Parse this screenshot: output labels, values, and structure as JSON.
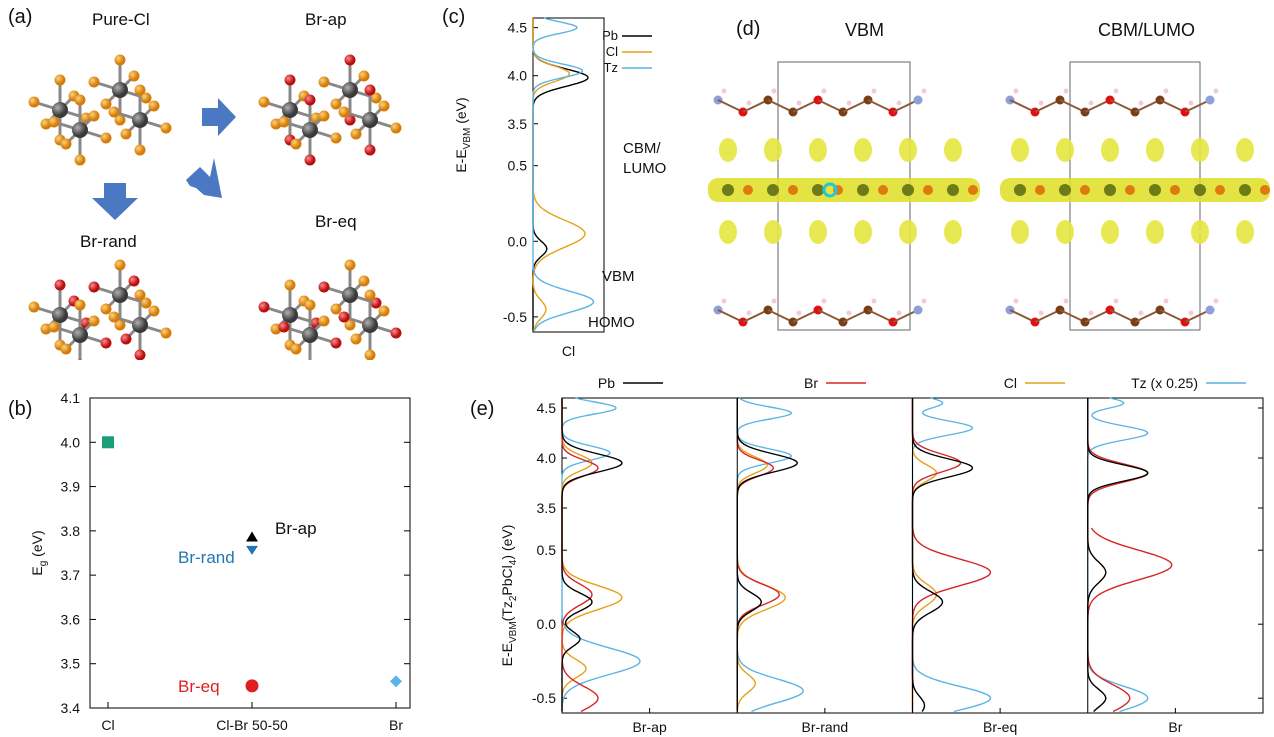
{
  "panels": {
    "a": {
      "label": "(a)",
      "structures": [
        "Pure-Cl",
        "Br-ap",
        "Br-rand",
        "Br-eq"
      ]
    },
    "b": {
      "label": "(b)",
      "ylabel": "E",
      "ylabel_sub": "g",
      "ylabel_unit": " (eV)",
      "annotations": [
        "Br-ap",
        "Br-rand",
        "Br-eq"
      ]
    },
    "c": {
      "label": "(c)",
      "ylabel_main": "E-E",
      "ylabel_sub": "VBM",
      "ylabel_unit": " (eV)",
      "xlabel": "Cl",
      "annotations": [
        "CBM/",
        "LUMO",
        "VBM",
        "HOMO"
      ],
      "legend": [
        "Pb",
        "Cl",
        "Tz"
      ]
    },
    "d": {
      "label": "(d)",
      "titles": [
        "VBM",
        "CBM/LUMO"
      ]
    },
    "e": {
      "label": "(e)",
      "ylabel_main": "E-E",
      "ylabel_sub": "VBM",
      "ylabel_paren": "(Tz",
      "ylabel_sub2": "2",
      "ylabel_mid": "PbCl",
      "ylabel_sub3": "4",
      "ylabel_end": ") (eV)",
      "legend": [
        "Pb",
        "Br",
        "Cl",
        "Tz (x 0.25)"
      ],
      "xlabels": [
        "Br-ap",
        "Br-rand",
        "Br-eq",
        "Br"
      ]
    }
  },
  "colors": {
    "Pb": "#000000",
    "Br": "#d62728",
    "Cl": "#e6a118",
    "Tz": "#5ab4e5",
    "square": "#1a9e77",
    "diamond": "#5ab4e5",
    "rand": "#1f77b4"
  },
  "chart_data": [
    {
      "type": "scatter",
      "panel": "b",
      "categories": [
        "Cl",
        "Cl-Br 50-50",
        "Br"
      ],
      "ylim": [
        3.4,
        4.1
      ],
      "yticks": [
        "3.4",
        "3.5",
        "3.6",
        "3.7",
        "3.8",
        "3.9",
        "4.0",
        "4.1"
      ],
      "series": [
        {
          "x": "Cl",
          "y": 4.0,
          "marker": "square"
        },
        {
          "x": "Cl-Br 50-50",
          "y": 3.785,
          "marker": "triangle-up",
          "label": "Br-ap"
        },
        {
          "x": "Cl-Br 50-50",
          "y": 3.757,
          "marker": "triangle-down",
          "label": "Br-rand"
        },
        {
          "x": "Cl-Br 50-50",
          "y": 3.45,
          "marker": "circle",
          "label": "Br-eq"
        },
        {
          "x": "Br",
          "y": 3.46,
          "marker": "diamond"
        }
      ]
    },
    {
      "type": "line",
      "panel": "c",
      "yticks": [
        "4.5",
        "4.0",
        "3.5",
        "0.5",
        "0.0",
        "-0.5"
      ],
      "series": [
        {
          "name": "Pb"
        },
        {
          "name": "Cl"
        },
        {
          "name": "Tz"
        }
      ]
    },
    {
      "type": "line",
      "panel": "e",
      "yticks": [
        "4.5",
        "4.0",
        "3.5",
        "0.5",
        "0.0",
        "-0.5"
      ],
      "series": [
        {
          "name": "Pb"
        },
        {
          "name": "Br"
        },
        {
          "name": "Cl"
        },
        {
          "name": "Tz (x 0.25)"
        }
      ]
    }
  ]
}
